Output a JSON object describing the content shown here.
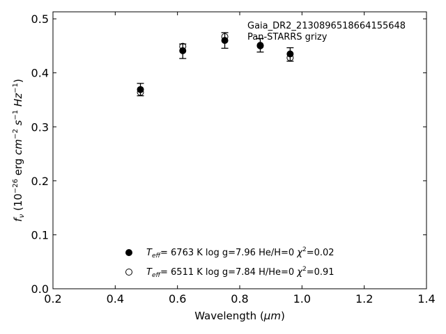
{
  "chart_data": {
    "type": "scatter",
    "title": "",
    "xlabel_main": "Wavelength (",
    "xlabel_unit": "μm",
    "xlabel_close": ")",
    "ylabel_sym": "f",
    "ylabel_sub": "ν",
    "ylabel_pre": " (10",
    "ylabel_exp1": "−26",
    "ylabel_mid": " erg ",
    "ylabel_cm": "cm",
    "ylabel_exp2": "−2",
    "ylabel_s": " s",
    "ylabel_exp3": "−1",
    "ylabel_hz": " Hz",
    "ylabel_exp4": "−1",
    "ylabel_close": ")",
    "xlim": [
      0.2,
      1.4
    ],
    "ylim": [
      0.0,
      0.513
    ],
    "xticks": [
      0.2,
      0.4,
      0.6,
      0.8,
      1.0,
      1.2,
      1.4
    ],
    "xtick_labels": [
      "0.2",
      "0.4",
      "0.6",
      "0.8",
      "1.0",
      "1.2",
      "1.4"
    ],
    "yticks": [
      0.0,
      0.1,
      0.2,
      0.3,
      0.4,
      0.5
    ],
    "ytick_labels": [
      "0.0",
      "0.1",
      "0.2",
      "0.3",
      "0.4",
      "0.5"
    ],
    "grid": false,
    "annotation": {
      "line1": "Gaia_DR2_2130896518664155648",
      "line2": "Pan-STARRS grizy"
    },
    "observed": {
      "x": [
        0.481,
        0.617,
        0.752,
        0.866,
        0.962
      ],
      "y": [
        0.369,
        0.44,
        0.46,
        0.451,
        0.434
      ],
      "yerr": [
        0.0115,
        0.0135,
        0.0145,
        0.0125,
        0.0125
      ]
    },
    "series": [
      {
        "marker": "filled",
        "x": [
          0.481,
          0.617,
          0.752,
          0.866,
          0.962
        ],
        "y": [
          0.369,
          0.441,
          0.46,
          0.45,
          0.435
        ],
        "legend": {
          "teff_T": "T",
          "teff_sub": "eff",
          "teff_val": "=  6763 K  log g=7.96  He/H=0  ",
          "chi": "χ",
          "chi_sup": "2",
          "chi_val": "=0.02"
        }
      },
      {
        "marker": "open",
        "x": [
          0.481,
          0.617,
          0.752,
          0.866,
          0.962
        ],
        "y": [
          0.364,
          0.449,
          0.467,
          0.451,
          0.428
        ],
        "legend": {
          "teff_T": "T",
          "teff_sub": "eff",
          "teff_val": "=  6511 K  log g=7.84  H/He=0  ",
          "chi": "χ",
          "chi_sup": "2",
          "chi_val": "=0.91"
        }
      }
    ],
    "legend_placement": "bottom-center"
  }
}
